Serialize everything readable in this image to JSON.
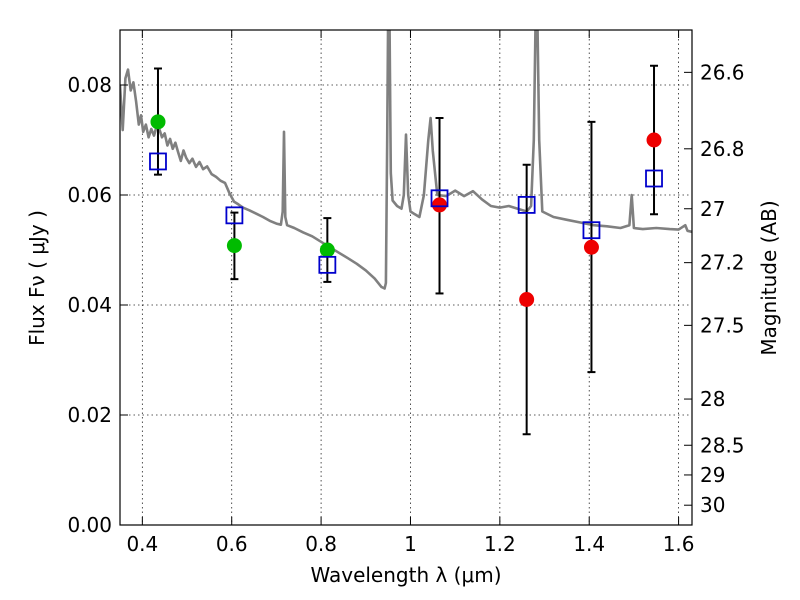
{
  "chart_data": {
    "type": "scatter",
    "xlabel": "Wavelength  λ (μm)",
    "ylabel": "Flux  Fν  ( μJy )",
    "ylabel_right": "Magnitude (AB)",
    "xlim": [
      0.35,
      1.63
    ],
    "ylim": [
      0.0,
      0.09
    ],
    "grid": true,
    "x_ticks": [
      0.4,
      0.6,
      0.8,
      1.0,
      1.2,
      1.4,
      1.6
    ],
    "x_tick_labels": [
      "0.4",
      "0.6",
      "0.8",
      "1",
      "1.2",
      "1.4",
      "1.6"
    ],
    "y_ticks": [
      0.0,
      0.02,
      0.04,
      0.06,
      0.08
    ],
    "y_tick_labels": [
      "0.00",
      "0.02",
      "0.04",
      "0.06",
      "0.08"
    ],
    "right_ticks": [
      {
        "label": "26.6",
        "flux": 0.0823
      },
      {
        "label": "26.8",
        "flux": 0.0684
      },
      {
        "label": "27",
        "flux": 0.0575
      },
      {
        "label": "27.2",
        "flux": 0.0477
      },
      {
        "label": "27.5",
        "flux": 0.0363
      },
      {
        "label": "28",
        "flux": 0.0229
      },
      {
        "label": "28.5",
        "flux": 0.0145
      },
      {
        "label": "29",
        "flux": 0.0091
      },
      {
        "label": "30",
        "flux": 0.0036
      }
    ],
    "series": [
      {
        "marker": "circle",
        "color": "#00bb00",
        "points": [
          {
            "x": 0.435,
            "y": 0.0733
          },
          {
            "x": 0.606,
            "y": 0.0508
          },
          {
            "x": 0.814,
            "y": 0.05
          }
        ]
      },
      {
        "marker": "circle",
        "color": "#ee0000",
        "points": [
          {
            "x": 1.065,
            "y": 0.0582
          },
          {
            "x": 1.26,
            "y": 0.041
          },
          {
            "x": 1.405,
            "y": 0.0505
          },
          {
            "x": 1.545,
            "y": 0.07
          }
        ]
      },
      {
        "marker": "open-square",
        "color": "#0000cc",
        "points": [
          {
            "x": 0.435,
            "y": 0.0661
          },
          {
            "x": 0.606,
            "y": 0.0563
          },
          {
            "x": 0.814,
            "y": 0.0473
          },
          {
            "x": 1.065,
            "y": 0.0594
          },
          {
            "x": 1.26,
            "y": 0.0582
          },
          {
            "x": 1.405,
            "y": 0.0536
          },
          {
            "x": 1.545,
            "y": 0.063
          }
        ]
      }
    ],
    "error_bars": [
      {
        "x": 0.435,
        "low": 0.0637,
        "high": 0.083
      },
      {
        "x": 0.606,
        "low": 0.0447,
        "high": 0.0568
      },
      {
        "x": 0.814,
        "low": 0.0442,
        "high": 0.0558
      },
      {
        "x": 1.065,
        "low": 0.0421,
        "high": 0.074
      },
      {
        "x": 1.26,
        "low": 0.0165,
        "high": 0.0655
      },
      {
        "x": 1.405,
        "low": 0.0278,
        "high": 0.0733
      },
      {
        "x": 1.545,
        "low": 0.0565,
        "high": 0.0835
      }
    ],
    "template_spectrum": {
      "color": "#808080",
      "points": [
        [
          0.35,
          0.08
        ],
        [
          0.356,
          0.0718
        ],
        [
          0.362,
          0.0812
        ],
        [
          0.368,
          0.0828
        ],
        [
          0.374,
          0.079
        ],
        [
          0.38,
          0.0805
        ],
        [
          0.386,
          0.077
        ],
        [
          0.392,
          0.0728
        ],
        [
          0.397,
          0.0745
        ],
        [
          0.402,
          0.0715
        ],
        [
          0.408,
          0.0728
        ],
        [
          0.414,
          0.0705
        ],
        [
          0.42,
          0.072
        ],
        [
          0.426,
          0.0708
        ],
        [
          0.432,
          0.0725
        ],
        [
          0.438,
          0.072
        ],
        [
          0.444,
          0.0705
        ],
        [
          0.45,
          0.0712
        ],
        [
          0.456,
          0.069
        ],
        [
          0.462,
          0.0702
        ],
        [
          0.468,
          0.0684
        ],
        [
          0.474,
          0.0695
        ],
        [
          0.48,
          0.0678
        ],
        [
          0.486,
          0.0662
        ],
        [
          0.492,
          0.0681
        ],
        [
          0.498,
          0.0668
        ],
        [
          0.505,
          0.0658
        ],
        [
          0.512,
          0.0666
        ],
        [
          0.52,
          0.0651
        ],
        [
          0.528,
          0.066
        ],
        [
          0.536,
          0.0647
        ],
        [
          0.545,
          0.0652
        ],
        [
          0.555,
          0.0638
        ],
        [
          0.565,
          0.0633
        ],
        [
          0.575,
          0.0626
        ],
        [
          0.585,
          0.0622
        ],
        [
          0.595,
          0.0603
        ],
        [
          0.605,
          0.0588
        ],
        [
          0.615,
          0.0583
        ],
        [
          0.625,
          0.0577
        ],
        [
          0.64,
          0.0572
        ],
        [
          0.655,
          0.0566
        ],
        [
          0.67,
          0.056
        ],
        [
          0.685,
          0.0553
        ],
        [
          0.7,
          0.0548
        ],
        [
          0.71,
          0.0546
        ],
        [
          0.714,
          0.057
        ],
        [
          0.717,
          0.0715
        ],
        [
          0.72,
          0.056
        ],
        [
          0.724,
          0.0545
        ],
        [
          0.74,
          0.054
        ],
        [
          0.76,
          0.0532
        ],
        [
          0.78,
          0.0525
        ],
        [
          0.8,
          0.0515
        ],
        [
          0.82,
          0.0505
        ],
        [
          0.84,
          0.0495
        ],
        [
          0.86,
          0.0485
        ],
        [
          0.88,
          0.0475
        ],
        [
          0.9,
          0.0463
        ],
        [
          0.92,
          0.0448
        ],
        [
          0.935,
          0.0433
        ],
        [
          0.942,
          0.043
        ],
        [
          0.945,
          0.044
        ],
        [
          0.948,
          0.07
        ],
        [
          0.95,
          0.092
        ],
        [
          0.953,
          0.092
        ],
        [
          0.956,
          0.064
        ],
        [
          0.96,
          0.059
        ],
        [
          0.97,
          0.058
        ],
        [
          0.98,
          0.0575
        ],
        [
          0.985,
          0.06
        ],
        [
          0.99,
          0.071
        ],
        [
          0.995,
          0.06
        ],
        [
          1.0,
          0.057
        ],
        [
          1.01,
          0.0565
        ],
        [
          1.02,
          0.056
        ],
        [
          1.03,
          0.06
        ],
        [
          1.04,
          0.07
        ],
        [
          1.045,
          0.074
        ],
        [
          1.05,
          0.068
        ],
        [
          1.06,
          0.06
        ],
        [
          1.08,
          0.0598
        ],
        [
          1.1,
          0.0608
        ],
        [
          1.12,
          0.0598
        ],
        [
          1.14,
          0.0607
        ],
        [
          1.16,
          0.0592
        ],
        [
          1.18,
          0.058
        ],
        [
          1.2,
          0.0577
        ],
        [
          1.22,
          0.058
        ],
        [
          1.24,
          0.0575
        ],
        [
          1.26,
          0.057
        ],
        [
          1.27,
          0.058
        ],
        [
          1.276,
          0.07
        ],
        [
          1.28,
          0.092
        ],
        [
          1.284,
          0.092
        ],
        [
          1.288,
          0.07
        ],
        [
          1.295,
          0.057
        ],
        [
          1.32,
          0.056
        ],
        [
          1.35,
          0.0555
        ],
        [
          1.38,
          0.055
        ],
        [
          1.41,
          0.0545
        ],
        [
          1.44,
          0.0543
        ],
        [
          1.47,
          0.054
        ],
        [
          1.49,
          0.0545
        ],
        [
          1.495,
          0.06
        ],
        [
          1.5,
          0.054
        ],
        [
          1.52,
          0.0538
        ],
        [
          1.55,
          0.054
        ],
        [
          1.58,
          0.0538
        ],
        [
          1.6,
          0.0537
        ],
        [
          1.615,
          0.0545
        ],
        [
          1.62,
          0.0535
        ],
        [
          1.63,
          0.0533
        ]
      ]
    }
  }
}
